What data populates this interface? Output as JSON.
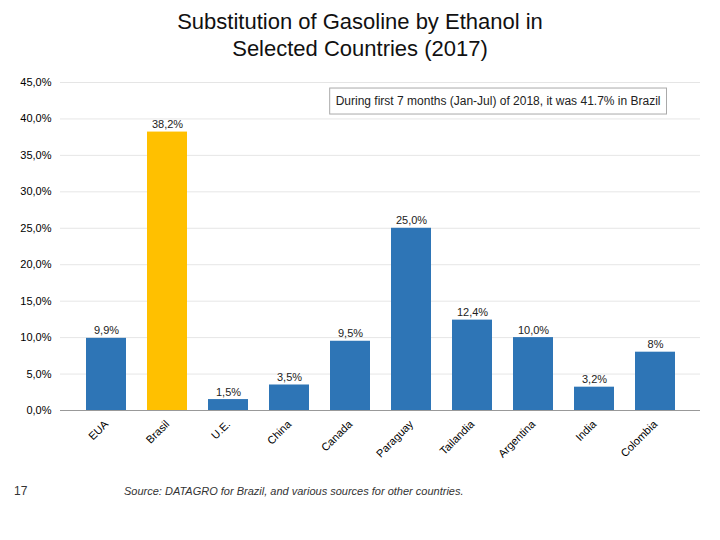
{
  "chart_data": {
    "type": "bar",
    "title": "Substitution of Gasoline by Ethanol in",
    "subtitle": "Selected Countries (2017)",
    "categories": [
      "EUA",
      "Brasil",
      "U.E.",
      "China",
      "Canada",
      "Paraguay",
      "Tailandia",
      "Argentina",
      "India",
      "Colombia"
    ],
    "values": [
      9.9,
      38.2,
      1.5,
      3.5,
      9.5,
      25.0,
      12.4,
      10.0,
      3.2,
      8.0
    ],
    "value_labels": [
      "9,9%",
      "38,2%",
      "1,5%",
      "3,5%",
      "9,5%",
      "25,0%",
      "12,4%",
      "10,0%",
      "3,2%",
      "8%"
    ],
    "colors": [
      "#2e75b6",
      "#ffc000",
      "#2e75b6",
      "#2e75b6",
      "#2e75b6",
      "#2e75b6",
      "#2e75b6",
      "#2e75b6",
      "#2e75b6",
      "#2e75b6"
    ],
    "data_labels": true,
    "ylim": [
      0,
      45
    ],
    "yticks": [
      {
        "value": 0,
        "label": "0,0%"
      },
      {
        "value": 5,
        "label": "5,0%"
      },
      {
        "value": 10,
        "label": "10,0%"
      },
      {
        "value": 15,
        "label": "15,0%"
      },
      {
        "value": 20,
        "label": "20,0%"
      },
      {
        "value": 25,
        "label": "25,0%"
      },
      {
        "value": 30,
        "label": "30,0%"
      },
      {
        "value": 35,
        "label": "35,0%"
      },
      {
        "value": 40,
        "label": "40,0%"
      },
      {
        "value": 45,
        "label": "45,0%"
      }
    ],
    "grid": true,
    "annotations": [
      "During first 7 months (Jan-Jul) of 2018, it was 41.7% in Brazil"
    ],
    "caption": "Source: DATAGRO for Brazil, and various sources for other countries.",
    "footnote": "17"
  }
}
